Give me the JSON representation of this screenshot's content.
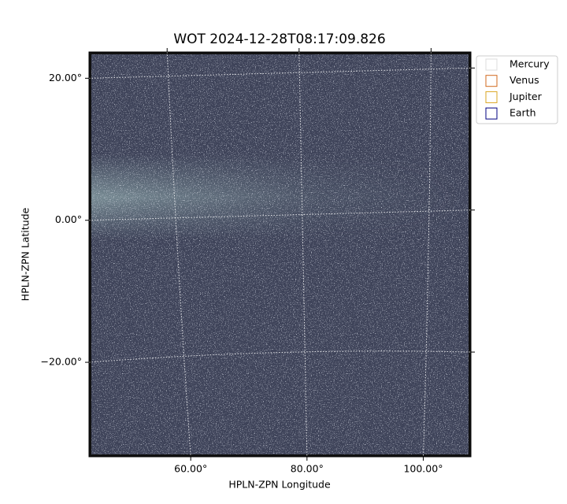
{
  "chart_data": {
    "type": "image",
    "title": "WOT 2024-12-28T08:17:09.826",
    "xlabel": "HPLN-ZPN Longitude",
    "ylabel": "HPLN-ZPN Latitude",
    "xlim": [
      42.5,
      108.2
    ],
    "ylim": [
      -33.3,
      23.7
    ],
    "xticks": [
      {
        "value": 60,
        "label": "60.00°"
      },
      {
        "value": 80,
        "label": "80.00°"
      },
      {
        "value": 100,
        "label": "100.00°"
      }
    ],
    "yticks": [
      {
        "value": -20,
        "label": "−20.00°"
      },
      {
        "value": 0,
        "label": "0.00°"
      },
      {
        "value": 20,
        "label": "20.00°"
      }
    ],
    "grid": true,
    "legend": "upper right",
    "series": [
      {
        "name": "Mercury",
        "color": "#dddddd"
      },
      {
        "name": "Venus",
        "color": "#d2691e"
      },
      {
        "name": "Jupiter",
        "color": "#daa520"
      },
      {
        "name": "Earth",
        "color": "#000080"
      }
    ]
  }
}
